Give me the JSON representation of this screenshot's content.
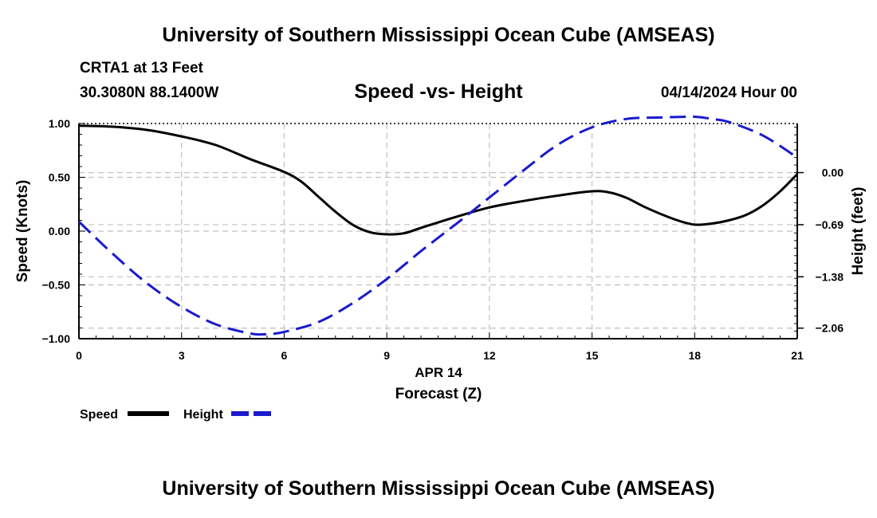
{
  "header": {
    "title": "University of Southern Mississippi Ocean Cube (AMSEAS)",
    "station": "CRTA1 at 13 Feet",
    "coords": "30.3080N  88.1400W",
    "chart_title": "Speed -vs- Height",
    "run_time": "04/14/2024 Hour 00"
  },
  "footer": {
    "title": "University of Southern Mississippi Ocean Cube (AMSEAS)"
  },
  "chart_data": {
    "type": "line",
    "title": "Speed -vs- Height",
    "xlabel": "Forecast (Z)",
    "x_date_label": "APR 14",
    "ylabel": "Speed (Knots)",
    "y2label": "Height (feet)",
    "xlim": [
      0,
      21
    ],
    "ylim": [
      -1.0,
      1.0
    ],
    "y2lim": [
      -2.2,
      0.65
    ],
    "grid": true,
    "legend": "bottom-left",
    "x_ticks": [
      0,
      3,
      6,
      9,
      12,
      15,
      18,
      21
    ],
    "x_tick_labels": [
      "0",
      "3",
      "6",
      "9",
      "12",
      "15",
      "18",
      "21"
    ],
    "y_ticks": [
      1.0,
      0.5,
      0.0,
      -0.5,
      -1.0
    ],
    "y_tick_labels": [
      "1.00",
      "0.50",
      "0.00",
      "−0.50",
      "−1.00"
    ],
    "y2_ticks": [
      0.0,
      -0.69,
      -1.38,
      -2.06
    ],
    "y2_tick_labels": [
      "0.00",
      "−0.69",
      "−1.38",
      "−2.06"
    ],
    "series": [
      {
        "name": "Speed",
        "axis": "left",
        "color": "#000000",
        "style": "solid",
        "x": [
          0,
          1,
          2,
          3,
          4,
          5,
          6,
          6.5,
          7,
          7.5,
          8,
          8.5,
          9,
          9.5,
          10,
          11,
          12,
          13,
          14,
          15,
          15.5,
          16,
          16.5,
          17,
          17.5,
          18,
          18.5,
          19,
          19.5,
          20,
          20.5,
          21
        ],
        "y": [
          0.98,
          0.97,
          0.94,
          0.88,
          0.8,
          0.67,
          0.55,
          0.46,
          0.32,
          0.18,
          0.06,
          -0.01,
          -0.03,
          -0.02,
          0.03,
          0.13,
          0.22,
          0.28,
          0.33,
          0.37,
          0.36,
          0.31,
          0.23,
          0.16,
          0.1,
          0.06,
          0.07,
          0.1,
          0.15,
          0.24,
          0.37,
          0.53
        ]
      },
      {
        "name": "Height",
        "axis": "right",
        "color": "#1a1acc",
        "style": "dashed",
        "x": [
          0,
          1,
          2,
          3,
          4,
          5,
          5.5,
          6,
          7,
          8,
          9,
          10,
          11,
          12,
          13,
          14,
          15,
          16,
          17,
          18,
          18.5,
          19,
          20,
          21
        ],
        "y": [
          -0.65,
          -1.08,
          -1.47,
          -1.78,
          -2.01,
          -2.13,
          -2.14,
          -2.11,
          -1.98,
          -1.73,
          -1.41,
          -1.04,
          -0.69,
          -0.33,
          0.03,
          0.37,
          0.6,
          0.71,
          0.73,
          0.74,
          0.71,
          0.67,
          0.49,
          0.2
        ]
      }
    ]
  }
}
